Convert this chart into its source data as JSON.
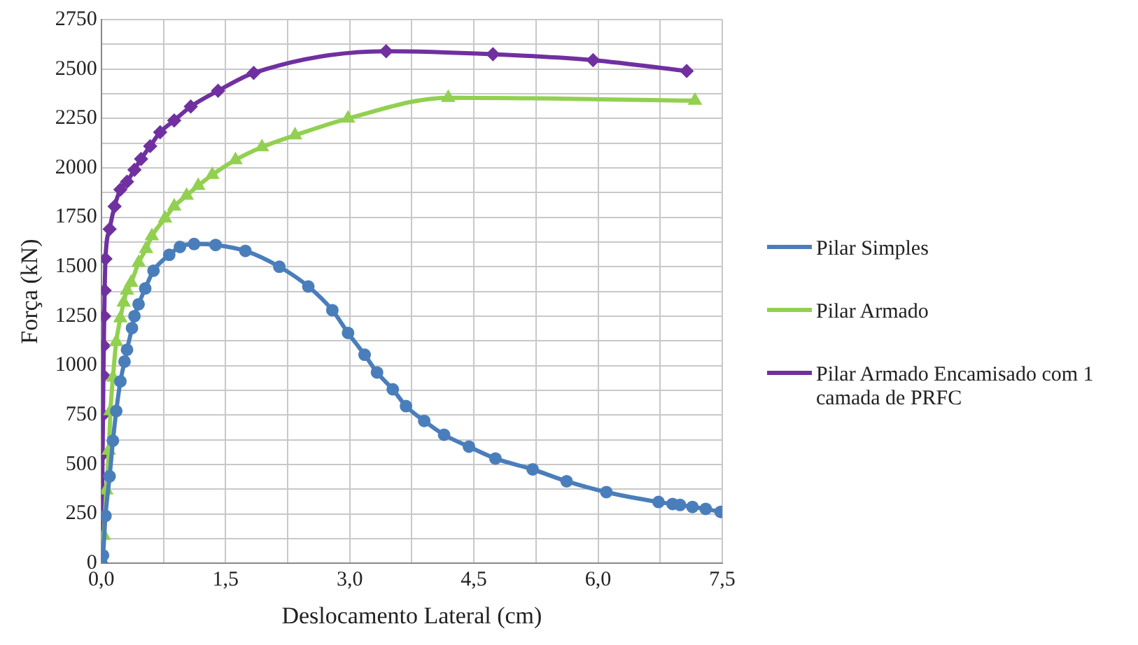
{
  "chart_data": {
    "type": "line",
    "xlabel": "Deslocamento Lateral (cm)",
    "ylabel": "Força (kN)",
    "xlim": [
      0,
      7.5
    ],
    "xticks": [
      {
        "value": 0,
        "label": "0,0"
      },
      {
        "value": 0.75,
        "label": null
      },
      {
        "value": 1.5,
        "label": "1,5"
      },
      {
        "value": 2.25,
        "label": null
      },
      {
        "value": 3,
        "label": "3,0"
      },
      {
        "value": 3.75,
        "label": null
      },
      {
        "value": 4.5,
        "label": "4,5"
      },
      {
        "value": 5.25,
        "label": null
      },
      {
        "value": 6,
        "label": "6,0"
      },
      {
        "value": 6.75,
        "label": null
      },
      {
        "value": 7.5,
        "label": "7,5"
      }
    ],
    "ylim": [
      0,
      2750
    ],
    "yticks": [
      0,
      {
        "value": 125,
        "label": null
      },
      250,
      {
        "value": 375,
        "label": null
      },
      500,
      {
        "value": 625,
        "label": null
      },
      750,
      {
        "value": 875,
        "label": null
      },
      1000,
      {
        "value": 1125,
        "label": null
      },
      1250,
      {
        "value": 1375,
        "label": null
      },
      1500,
      {
        "value": 1625,
        "label": null
      },
      1750,
      {
        "value": 1875,
        "label": null
      },
      2000,
      {
        "value": 2125,
        "label": null
      },
      2250,
      {
        "value": 2375,
        "label": null
      },
      2500,
      {
        "value": 2625,
        "label": null
      },
      2750
    ],
    "grid": true,
    "legend": "right",
    "line_style": "solid",
    "series": [
      {
        "name": "Pilar Simples",
        "color": "#4a7ebb",
        "marker": "circle",
        "x": [
          0,
          0.02,
          0.05,
          0.1,
          0.14,
          0.18,
          0.23,
          0.28,
          0.31,
          0.37,
          0.4,
          0.45,
          0.53,
          0.63,
          0.82,
          0.95,
          1.12,
          1.38,
          1.74,
          2.15,
          2.5,
          2.79,
          2.98,
          3.18,
          3.33,
          3.52,
          3.68,
          3.9,
          4.14,
          4.44,
          4.76,
          5.21,
          5.62,
          6.1,
          6.73,
          6.9,
          6.99,
          7.14,
          7.3,
          7.48
        ],
        "values": [
          0,
          40,
          240,
          440,
          620,
          770,
          920,
          1020,
          1080,
          1190,
          1250,
          1310,
          1390,
          1480,
          1560,
          1600,
          1615,
          1610,
          1580,
          1500,
          1400,
          1280,
          1165,
          1055,
          965,
          880,
          795,
          720,
          650,
          590,
          530,
          475,
          415,
          360,
          310,
          300,
          295,
          285,
          275,
          260
        ]
      },
      {
        "name": "Pilar Armado",
        "color": "#92d050",
        "marker": "triangle",
        "x": [
          0,
          0.03,
          0.06,
          0.09,
          0.11,
          0.14,
          0.18,
          0.23,
          0.27,
          0.31,
          0.36,
          0.45,
          0.54,
          0.61,
          0.77,
          0.88,
          1.03,
          1.17,
          1.34,
          1.62,
          1.94,
          2.34,
          2.98,
          4.19,
          7.17
        ],
        "values": [
          0,
          140,
          370,
          570,
          770,
          940,
          1120,
          1240,
          1320,
          1380,
          1420,
          1520,
          1590,
          1655,
          1745,
          1805,
          1860,
          1910,
          1965,
          2040,
          2105,
          2165,
          2250,
          2355,
          2340
        ]
      },
      {
        "name": "Pilar Armado Encamisado com 1 camada de PRFC",
        "color": "#7030a0",
        "marker": "diamond",
        "x": [
          0,
          0.01,
          0.015,
          0.02,
          0.025,
          0.03,
          0.035,
          0.04,
          0.05,
          0.1,
          0.16,
          0.23,
          0.31,
          0.4,
          0.48,
          0.59,
          0.71,
          0.88,
          1.08,
          1.41,
          1.84,
          3.44,
          4.73,
          5.94,
          7.07
        ],
        "values": [
          0,
          350,
          550,
          750,
          950,
          1100,
          1250,
          1380,
          1540,
          1690,
          1805,
          1890,
          1930,
          1990,
          2045,
          2110,
          2180,
          2240,
          2310,
          2390,
          2480,
          2590,
          2575,
          2545,
          2490
        ]
      }
    ]
  }
}
